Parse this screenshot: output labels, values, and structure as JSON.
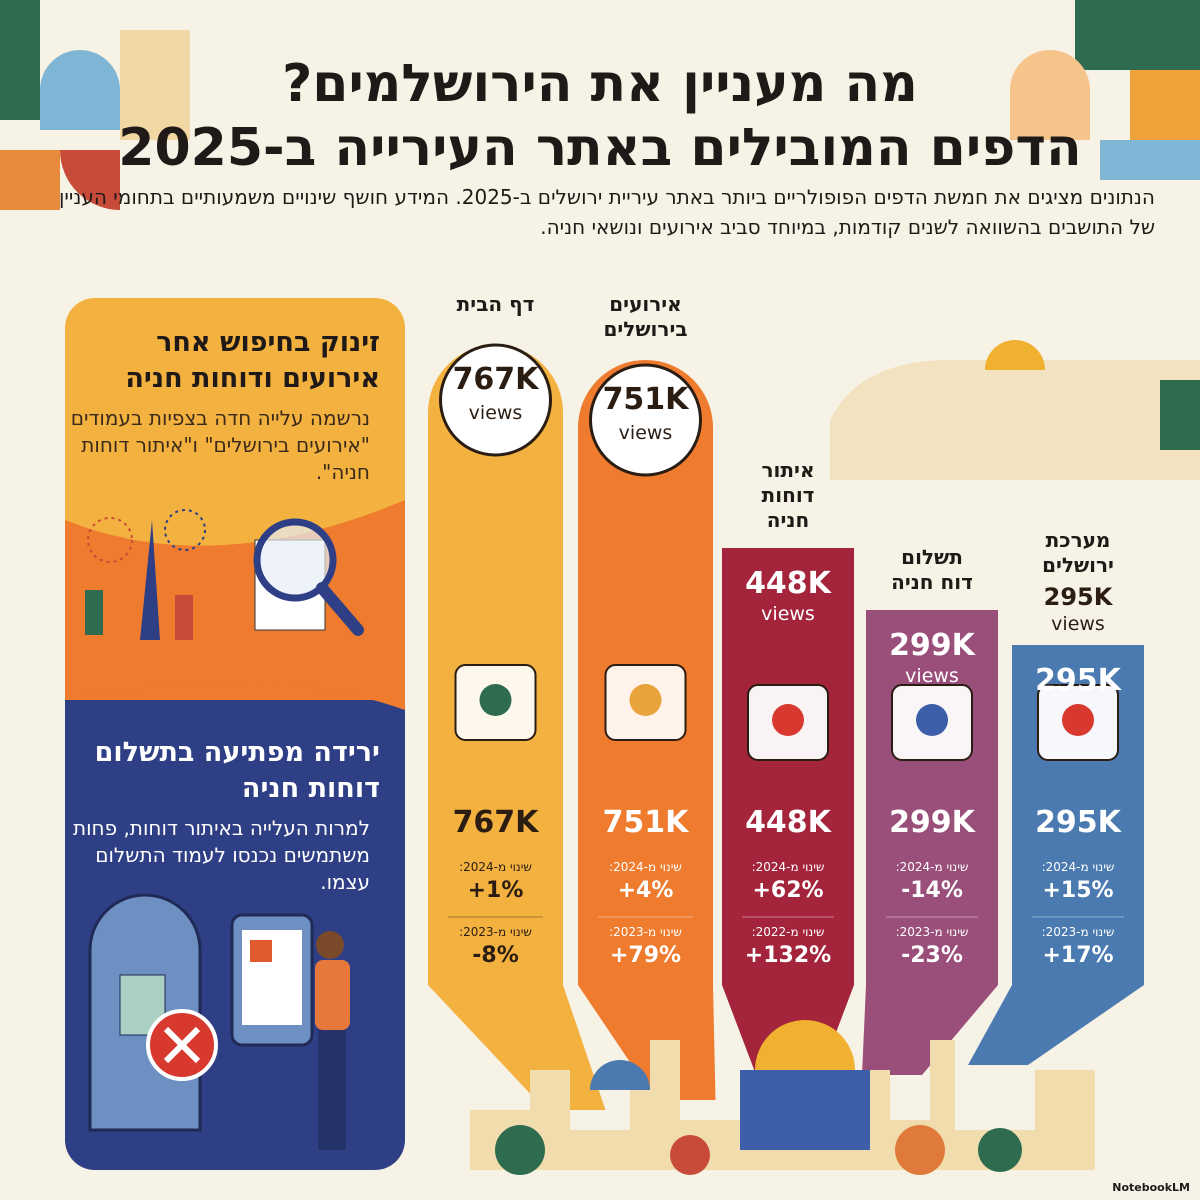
{
  "header": {
    "title_lines": [
      "מה מעניין את הירושלמים?",
      "הדפים המובילים באתר העירייה ב-2025"
    ],
    "description": "הנתונים מציגים את חמשת הדפים הפופולריים ביותר באתר עיריית ירושלים ב-2025. המידע חושף שינויים משמעותיים בתחומי העניין של התושבים בהשוואה לשנים קודמות, במיוחד סביב אירועים ונושאי חניה."
  },
  "panels": [
    {
      "title": "זינוק בחיפוש אחר אירועים ודוחות חניה",
      "body": "נרשמה עלייה חדה בצפיות בעמודים \"אירועים בירושלים\" ו\"איתור דוחות חניה\"."
    },
    {
      "title": "ירידה מפתיעה בתשלום דוחות חניה",
      "body": "למרות העלייה באיתור דוחות, פחות משתמשים נכנסו לעמוד התשלום עצמו."
    }
  ],
  "columns": [
    {
      "label_lines": [
        "דף הבית"
      ],
      "top_value": "767K",
      "top_unit": "views",
      "value": "767K",
      "changes": [
        {
          "label": "שינוי מ-2024:",
          "value": "+1%"
        },
        {
          "label": "שינוי מ-2023:",
          "value": "-8%"
        }
      ]
    },
    {
      "label_lines": [
        "אירועים",
        "בירושלים"
      ],
      "top_value": "751K",
      "top_unit": "views",
      "value": "751K",
      "changes": [
        {
          "label": "שינוי מ-2024:",
          "value": "+4%"
        },
        {
          "label": "שינוי מ-2023:",
          "value": "+79%"
        }
      ]
    },
    {
      "label_lines": [
        "איתור",
        "דוחות",
        "חניה"
      ],
      "top_value": "448K",
      "top_unit": "views",
      "value": "448K",
      "changes": [
        {
          "label": "שינוי מ-2024:",
          "value": "+62%"
        },
        {
          "label": "שינוי מ-2022:",
          "value": "+132%"
        }
      ]
    },
    {
      "label_lines": [
        "תשלום",
        "דוח חניה"
      ],
      "top_value": "299K",
      "top_unit": "views",
      "value": "299K",
      "changes": [
        {
          "label": "שינוי מ-2024:",
          "value": "-14%"
        },
        {
          "label": "שינוי מ-2023:",
          "value": "-23%"
        }
      ]
    },
    {
      "label_lines": [
        "מערכת",
        "ירושלים"
      ],
      "top_value": "295K",
      "top_unit": "views",
      "box_value": "295K",
      "value": "295K",
      "changes": [
        {
          "label": "שינוי מ-2024:",
          "value": "+15%"
        },
        {
          "label": "שינוי מ-2023:",
          "value": "+17%"
        }
      ]
    }
  ],
  "footer": "NotebookLM"
}
